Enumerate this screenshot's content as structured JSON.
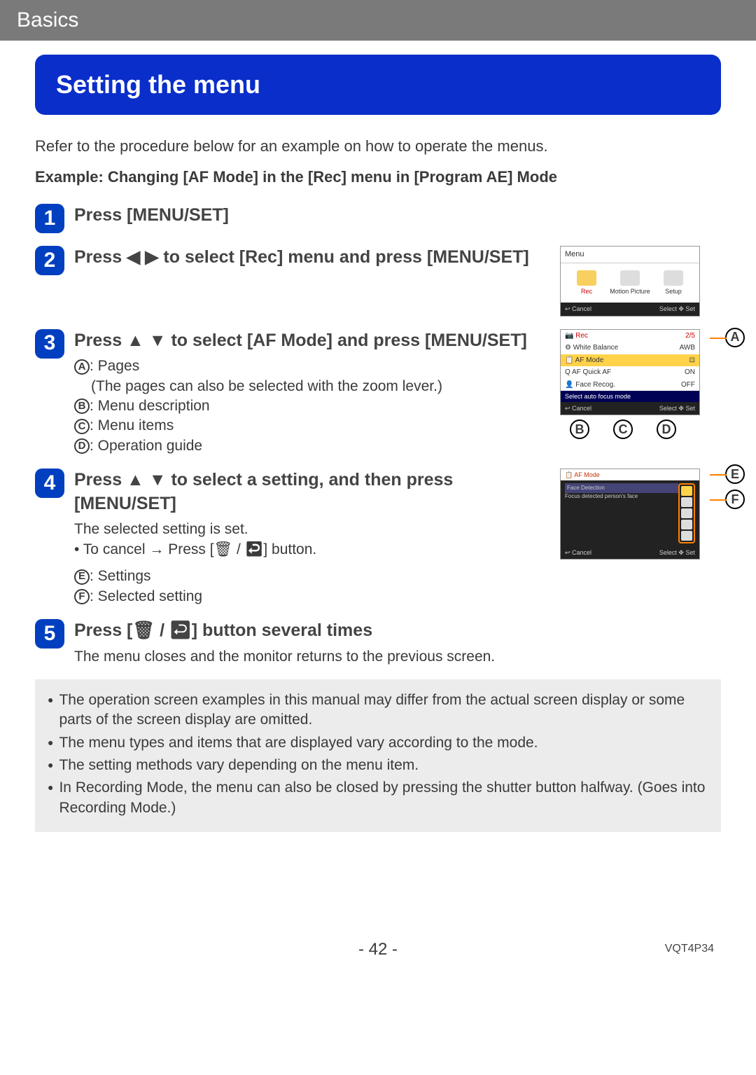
{
  "header": {
    "breadcrumb": "Basics"
  },
  "title": "Setting the menu",
  "intro": "Refer to the procedure below for an example on how to operate the menus.",
  "example": "Example: Changing [AF Mode] in the [Rec] menu in [Program AE] Mode",
  "steps": {
    "s1": {
      "num": "1",
      "title": "Press [MENU/SET]"
    },
    "s2": {
      "num": "2",
      "title": "Press ◀ ▶ to select [Rec] menu and press [MENU/SET]"
    },
    "s3": {
      "num": "3",
      "title": "Press ▲ ▼ to select [AF Mode] and press [MENU/SET]",
      "labels": {
        "A": "Pages",
        "A_sub": "(The pages can also be selected with the zoom lever.)",
        "B": "Menu description",
        "C": "Menu items",
        "D": "Operation guide"
      }
    },
    "s4": {
      "num": "4",
      "title": "Press ▲ ▼ to select a setting, and then press [MENU/SET]",
      "line1": "The selected setting is set.",
      "line2": "• To cancel → Press [🗑 / ↩] button.",
      "labels": {
        "E": "Settings",
        "F": "Selected setting"
      }
    },
    "s5": {
      "num": "5",
      "title": "Press [🗑 / ↩] button several times",
      "line1": "The menu closes and the monitor returns to the previous screen."
    }
  },
  "fig1": {
    "title": "Menu",
    "tabs": [
      {
        "label": "Rec",
        "active": true
      },
      {
        "label": "Motion Picture",
        "active": false
      },
      {
        "label": "Setup",
        "active": false
      }
    ],
    "foot_left": "↩ Cancel",
    "foot_right": "Select ✥ Set"
  },
  "fig2": {
    "header_left": "📷 Rec",
    "header_right": "2/5",
    "rows": [
      {
        "label": "⚙ White Balance",
        "val": "AWB",
        "hl": false
      },
      {
        "label": "📋 AF Mode",
        "val": "⊡",
        "hl": true
      },
      {
        "label": "Q AF Quick AF",
        "val": "ON",
        "hl": false
      },
      {
        "label": "👤 Face Recog.",
        "val": "OFF",
        "hl": false
      }
    ],
    "desc": "Select auto focus mode",
    "foot_left": "↩ Cancel",
    "foot_right": "Select ✥ Set"
  },
  "fig3": {
    "title": "📋 AF Mode",
    "left_top": "Face Detection",
    "left_sub": "Focus detected person's face",
    "foot_left": "↩ Cancel",
    "foot_right": "Select ✥ Set"
  },
  "notes": [
    "The operation screen examples in this manual may differ from the actual screen display or some parts of the screen display are omitted.",
    "The menu types and items that are displayed vary according to the mode.",
    "The setting methods vary depending on the menu item.",
    "In Recording Mode, the menu can also be closed by pressing the shutter button halfway. (Goes into Recording Mode.)"
  ],
  "page_number": "- 42 -",
  "doc_code": "VQT4P34"
}
